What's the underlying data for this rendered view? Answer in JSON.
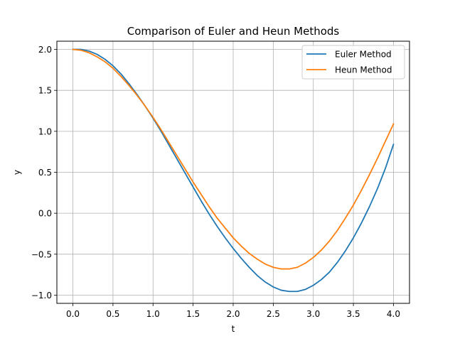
{
  "chart_data": {
    "type": "line",
    "title": "Comparison of Euler and Heun Methods",
    "xlabel": "t",
    "ylabel": "y",
    "xlim": [
      -0.2,
      4.2
    ],
    "ylim": [
      -1.1,
      2.1
    ],
    "xticks": [
      0.0,
      0.5,
      1.0,
      1.5,
      2.0,
      2.5,
      3.0,
      3.5,
      4.0
    ],
    "xtick_labels": [
      "0.0",
      "0.5",
      "1.0",
      "1.5",
      "2.0",
      "2.5",
      "3.0",
      "3.5",
      "4.0"
    ],
    "yticks": [
      -1.0,
      -0.5,
      0.0,
      0.5,
      1.0,
      1.5,
      2.0
    ],
    "ytick_labels": [
      "−1.0",
      "−0.5",
      "0.0",
      "0.5",
      "1.0",
      "1.5",
      "2.0"
    ],
    "grid": true,
    "legend_position": "upper right",
    "x": [
      0.0,
      0.1,
      0.2,
      0.3,
      0.4,
      0.5,
      0.6,
      0.7,
      0.8,
      0.9,
      1.0,
      1.1,
      1.2,
      1.3,
      1.4,
      1.5,
      1.6,
      1.7,
      1.8,
      1.9,
      2.0,
      2.1,
      2.2,
      2.3,
      2.4,
      2.5,
      2.6,
      2.7,
      2.8,
      2.9,
      3.0,
      3.1,
      3.2,
      3.3,
      3.4,
      3.5,
      3.6,
      3.7,
      3.8,
      3.9,
      4.0
    ],
    "series": [
      {
        "name": "Euler Method",
        "color": "#1f77b4",
        "values": [
          2.0,
          2.0,
          1.98,
          1.94,
          1.88,
          1.8,
          1.7,
          1.58,
          1.45,
          1.31,
          1.16,
          1.0,
          0.83,
          0.66,
          0.49,
          0.32,
          0.15,
          -0.01,
          -0.16,
          -0.3,
          -0.43,
          -0.55,
          -0.66,
          -0.76,
          -0.84,
          -0.9,
          -0.94,
          -0.955,
          -0.955,
          -0.93,
          -0.88,
          -0.81,
          -0.72,
          -0.6,
          -0.46,
          -0.3,
          -0.12,
          0.08,
          0.3,
          0.55,
          0.84
        ]
      },
      {
        "name": "Heun Method",
        "color": "#ff7f0e",
        "values": [
          2.0,
          1.99,
          1.96,
          1.91,
          1.85,
          1.77,
          1.67,
          1.56,
          1.44,
          1.31,
          1.17,
          1.02,
          0.86,
          0.7,
          0.54,
          0.38,
          0.23,
          0.08,
          -0.06,
          -0.18,
          -0.3,
          -0.4,
          -0.49,
          -0.56,
          -0.62,
          -0.66,
          -0.68,
          -0.68,
          -0.66,
          -0.61,
          -0.54,
          -0.45,
          -0.34,
          -0.21,
          -0.06,
          0.1,
          0.28,
          0.47,
          0.67,
          0.88,
          1.09
        ]
      }
    ]
  }
}
